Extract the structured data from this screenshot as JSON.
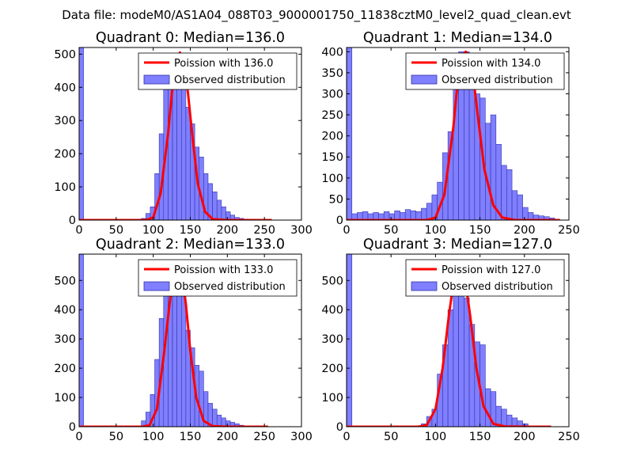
{
  "figure": {
    "suptitle": "Data file: modeM0/AS1A04_088T03_9000001750_11838cztM0_level2_quad_clean.evt"
  },
  "colors": {
    "bar_fill": "#7f7fff",
    "bar_stroke": "#3333aa",
    "poisson_line": "#ff0000",
    "axes": "#000000"
  },
  "chart_data": [
    {
      "type": "bar",
      "title": "Quadrant 0: Median=136.0",
      "xlim": [
        0,
        300
      ],
      "ylim": [
        0,
        520
      ],
      "xticks": [
        0,
        50,
        100,
        150,
        200,
        250,
        300
      ],
      "yticks": [
        0,
        100,
        200,
        300,
        400,
        500
      ],
      "bin_width": 6,
      "legend": {
        "position": "top-right",
        "line_label": "Poission with 136.0",
        "bar_label": "Observed distribution"
      },
      "series": [
        {
          "name": "Observed distribution",
          "bin_starts": [
            0,
            84,
            90,
            96,
            102,
            108,
            114,
            120,
            126,
            132,
            138,
            144,
            150,
            156,
            162,
            168,
            174,
            180,
            186,
            192,
            198,
            204,
            210,
            216,
            222
          ],
          "values": [
            520,
            5,
            20,
            40,
            140,
            260,
            400,
            500,
            490,
            480,
            440,
            340,
            290,
            220,
            190,
            140,
            110,
            85,
            60,
            40,
            25,
            15,
            8,
            5,
            3
          ]
        },
        {
          "name": "Poission with 136.0",
          "x": [
            0,
            90,
            100,
            110,
            120,
            125,
            130,
            136,
            142,
            147,
            152,
            160,
            170,
            180,
            200,
            260
          ],
          "y": [
            0,
            0,
            8,
            80,
            260,
            380,
            470,
            505,
            470,
            380,
            270,
            110,
            25,
            3,
            0,
            0
          ]
        }
      ]
    },
    {
      "type": "bar",
      "title": "Quadrant 1: Median=134.0",
      "xlim": [
        0,
        250
      ],
      "ylim": [
        0,
        410
      ],
      "xticks": [
        0,
        50,
        100,
        150,
        200,
        250
      ],
      "yticks": [
        0,
        50,
        100,
        150,
        200,
        250,
        300,
        350,
        400
      ],
      "bin_width": 6,
      "legend": {
        "position": "top-right",
        "line_label": "Poission with 134.0",
        "bar_label": "Observed distribution"
      },
      "series": [
        {
          "name": "Observed distribution",
          "bin_starts": [
            0,
            6,
            12,
            18,
            24,
            30,
            36,
            42,
            48,
            54,
            60,
            66,
            72,
            78,
            84,
            90,
            96,
            102,
            108,
            114,
            120,
            126,
            132,
            138,
            144,
            150,
            156,
            162,
            168,
            174,
            180,
            186,
            192,
            198,
            204,
            210,
            216,
            222,
            228
          ],
          "values": [
            410,
            15,
            18,
            20,
            15,
            18,
            15,
            20,
            15,
            22,
            18,
            25,
            22,
            20,
            28,
            40,
            60,
            90,
            160,
            210,
            330,
            400,
            400,
            350,
            300,
            290,
            230,
            250,
            180,
            130,
            120,
            70,
            60,
            30,
            18,
            12,
            10,
            8,
            5
          ]
        },
        {
          "name": "Poission with 134.0",
          "x": [
            0,
            90,
            100,
            110,
            120,
            125,
            130,
            134,
            138,
            143,
            148,
            155,
            165,
            175,
            190,
            240
          ],
          "y": [
            0,
            0,
            6,
            60,
            220,
            330,
            390,
            400,
            390,
            330,
            240,
            120,
            35,
            6,
            0,
            0
          ]
        }
      ]
    },
    {
      "type": "bar",
      "title": "Quadrant 2: Median=133.0",
      "xlim": [
        0,
        300
      ],
      "ylim": [
        0,
        590
      ],
      "xticks": [
        0,
        50,
        100,
        150,
        200,
        250,
        300
      ],
      "yticks": [
        0,
        100,
        200,
        300,
        400,
        500
      ],
      "bin_width": 6,
      "legend": {
        "position": "top-right",
        "line_label": "Poission with 133.0",
        "bar_label": "Observed distribution"
      },
      "series": [
        {
          "name": "Observed distribution",
          "bin_starts": [
            0,
            84,
            90,
            96,
            102,
            108,
            114,
            120,
            126,
            132,
            138,
            144,
            150,
            156,
            162,
            168,
            174,
            180,
            186,
            192,
            198,
            204,
            210,
            216
          ],
          "values": [
            590,
            20,
            50,
            110,
            230,
            370,
            470,
            540,
            550,
            510,
            480,
            330,
            270,
            210,
            190,
            120,
            80,
            60,
            40,
            30,
            20,
            15,
            10,
            5
          ]
        },
        {
          "name": "Poission with 133.0",
          "x": [
            0,
            85,
            95,
            105,
            115,
            122,
            128,
            133,
            138,
            144,
            150,
            158,
            168,
            180,
            200,
            255
          ],
          "y": [
            0,
            0,
            5,
            60,
            260,
            420,
            530,
            555,
            530,
            420,
            260,
            100,
            20,
            2,
            0,
            0
          ]
        }
      ]
    },
    {
      "type": "bar",
      "title": "Quadrant 3: Median=127.0",
      "xlim": [
        0,
        250
      ],
      "ylim": [
        0,
        590
      ],
      "xticks": [
        0,
        50,
        100,
        150,
        200,
        250
      ],
      "yticks": [
        0,
        100,
        200,
        300,
        400,
        500
      ],
      "bin_width": 6,
      "legend": {
        "position": "top-right",
        "line_label": "Poission with 127.0",
        "bar_label": "Observed distribution"
      },
      "series": [
        {
          "name": "Observed distribution",
          "bin_starts": [
            0,
            84,
            90,
            96,
            102,
            108,
            114,
            120,
            126,
            132,
            138,
            144,
            150,
            156,
            162,
            168,
            174,
            180,
            186,
            192,
            198
          ],
          "values": [
            590,
            10,
            35,
            60,
            180,
            280,
            400,
            500,
            540,
            440,
            350,
            290,
            280,
            130,
            120,
            70,
            60,
            40,
            30,
            20,
            10
          ]
        },
        {
          "name": "Poission with 127.0",
          "x": [
            0,
            80,
            90,
            100,
            108,
            115,
            121,
            127,
            133,
            139,
            146,
            154,
            165,
            178,
            200,
            230
          ],
          "y": [
            0,
            0,
            5,
            60,
            200,
            380,
            510,
            550,
            510,
            380,
            200,
            70,
            10,
            1,
            0,
            0
          ]
        }
      ]
    }
  ]
}
